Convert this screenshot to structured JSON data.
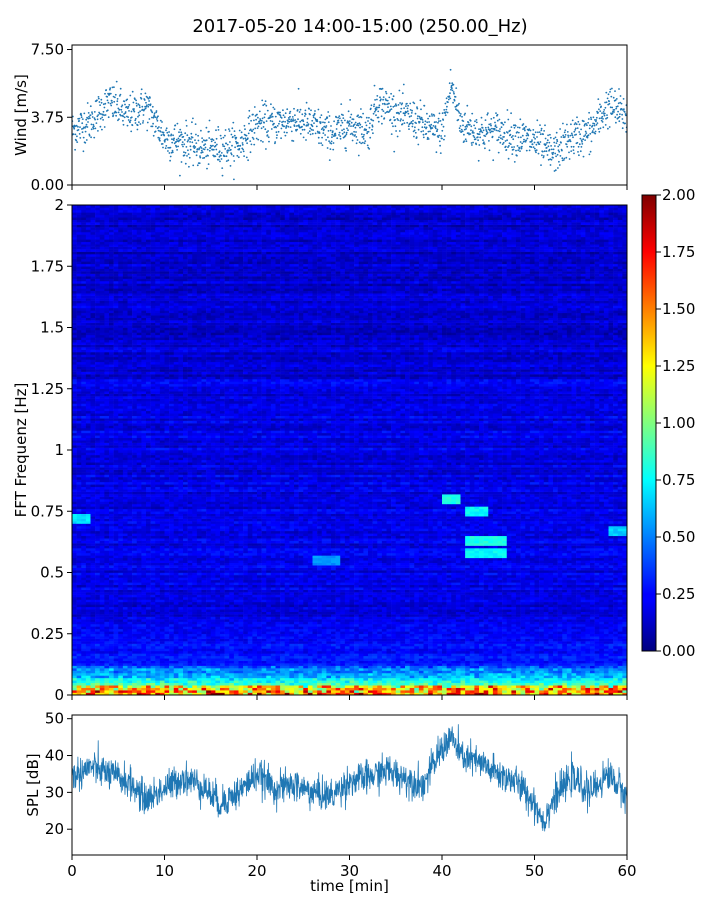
{
  "title": "2017-05-20 14:00-15:00 (250.00_Hz)",
  "colors": {
    "scatter": "#1f77b4",
    "line": "#1f77b4",
    "axes": "#000000"
  },
  "chart_data": [
    {
      "type": "scatter",
      "ylabel": "Wind [m/s]",
      "xlabel": "",
      "xlim": [
        0,
        60
      ],
      "ylim": [
        0,
        7.75
      ],
      "yticks": [
        "0.00",
        "3.75",
        "7.50"
      ],
      "grid": false,
      "series": [
        {
          "x": [
            0,
            2,
            4,
            5,
            6,
            8,
            10,
            12,
            14,
            16,
            18,
            20,
            22,
            24,
            26,
            28,
            30,
            32,
            33,
            35,
            37,
            39,
            40,
            41,
            42,
            44,
            46,
            48,
            50,
            52,
            54,
            56,
            58,
            60
          ],
          "y": [
            3.0,
            3.5,
            4.6,
            4.3,
            3.8,
            4.4,
            2.6,
            2.4,
            2.0,
            2.1,
            2.2,
            3.4,
            3.4,
            3.6,
            3.3,
            2.8,
            3.4,
            3.0,
            4.7,
            4.0,
            3.6,
            3.0,
            2.9,
            5.6,
            3.4,
            2.9,
            3.0,
            2.7,
            2.4,
            1.7,
            2.6,
            2.9,
            4.4,
            3.8
          ]
        }
      ]
    },
    {
      "type": "heatmap",
      "ylabel": "FFT Frequenz [Hz]",
      "xlabel": "",
      "xlim": [
        0,
        60
      ],
      "ylim": [
        0,
        2
      ],
      "yticks": [
        "0",
        "0.25",
        "0.5",
        "0.75",
        "1",
        "1.25",
        "1.5",
        "1.75",
        "2"
      ],
      "colormap": "jet",
      "colorbar": {
        "vmin": 0,
        "vmax": 2,
        "ticks": [
          "0.00",
          "0.25",
          "0.50",
          "0.75",
          "1.00",
          "1.25",
          "1.50",
          "1.75",
          "2.00"
        ]
      },
      "features": [
        {
          "t": [
            40,
            42
          ],
          "f": 0.8,
          "value": 0.8
        },
        {
          "t": [
            42.5,
            45
          ],
          "f": 0.75,
          "value": 0.75
        },
        {
          "t": [
            42.5,
            47
          ],
          "f": 0.63,
          "value": 0.8
        },
        {
          "t": [
            42.5,
            47
          ],
          "f": 0.58,
          "value": 0.75
        },
        {
          "t": [
            0,
            2
          ],
          "f": 0.72,
          "value": 0.7
        },
        {
          "t": [
            26,
            29
          ],
          "f": 0.55,
          "value": 0.55
        },
        {
          "t": [
            58,
            60
          ],
          "f": 0.67,
          "value": 0.65
        }
      ]
    },
    {
      "type": "line",
      "ylabel": "SPL [dB]",
      "xlabel": "time [min]",
      "xlim": [
        0,
        60
      ],
      "xticks": [
        "0",
        "10",
        "20",
        "30",
        "40",
        "50",
        "60"
      ],
      "ylim": [
        13,
        51
      ],
      "yticks": [
        "20",
        "30",
        "40",
        "50"
      ],
      "grid": false,
      "series": [
        {
          "x": [
            0,
            2,
            4,
            6,
            8,
            10,
            12,
            14,
            16,
            18,
            20,
            22,
            24,
            26,
            28,
            30,
            32,
            34,
            36,
            38,
            40,
            41,
            42,
            44,
            46,
            48,
            50,
            51,
            52,
            54,
            56,
            58,
            60
          ],
          "y": [
            34,
            37,
            35,
            33,
            28,
            31,
            34,
            32,
            27,
            30,
            35,
            31,
            32,
            30,
            29,
            33,
            34,
            36,
            34,
            32,
            42,
            45,
            40,
            38,
            35,
            33,
            27,
            22,
            28,
            34,
            30,
            35,
            29
          ]
        }
      ]
    }
  ]
}
